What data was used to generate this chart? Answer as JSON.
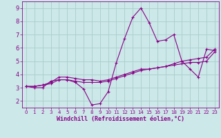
{
  "xlabel": "Windchill (Refroidissement éolien,°C)",
  "background_color": "#cce8e8",
  "grid_color": "#aacccc",
  "line_color": "#880088",
  "x": [
    0,
    1,
    2,
    3,
    4,
    5,
    6,
    7,
    8,
    9,
    10,
    11,
    12,
    13,
    14,
    15,
    16,
    17,
    18,
    19,
    20,
    21,
    22,
    23
  ],
  "series1": [
    3.1,
    3.0,
    3.0,
    3.5,
    3.6,
    3.6,
    3.4,
    2.9,
    1.7,
    1.8,
    2.7,
    4.9,
    6.7,
    8.3,
    9.0,
    7.9,
    6.5,
    6.6,
    7.0,
    5.0,
    4.4,
    3.8,
    5.9,
    5.8
  ],
  "series2": [
    3.1,
    3.1,
    3.2,
    3.3,
    3.6,
    3.6,
    3.5,
    3.4,
    3.4,
    3.4,
    3.5,
    3.7,
    3.9,
    4.1,
    4.3,
    4.4,
    4.5,
    4.6,
    4.8,
    5.0,
    5.1,
    5.2,
    5.3,
    5.9
  ],
  "series3": [
    3.1,
    3.1,
    3.2,
    3.4,
    3.8,
    3.8,
    3.7,
    3.6,
    3.6,
    3.5,
    3.6,
    3.8,
    4.0,
    4.2,
    4.4,
    4.4,
    4.5,
    4.6,
    4.7,
    4.8,
    4.9,
    4.9,
    5.0,
    5.7
  ],
  "ylim": [
    1.5,
    9.5
  ],
  "xlim": [
    -0.5,
    23.5
  ],
  "yticks": [
    2,
    3,
    4,
    5,
    6,
    7,
    8,
    9
  ],
  "xticks": [
    0,
    1,
    2,
    3,
    4,
    5,
    6,
    7,
    8,
    9,
    10,
    11,
    12,
    13,
    14,
    15,
    16,
    17,
    18,
    19,
    20,
    21,
    22,
    23
  ],
  "xtick_labels": [
    "0",
    "1",
    "2",
    "3",
    "4",
    "5",
    "6",
    "7",
    "8",
    "9",
    "10",
    "11",
    "12",
    "13",
    "14",
    "15",
    "16",
    "17",
    "18",
    "19",
    "20",
    "21",
    "22",
    "23"
  ]
}
